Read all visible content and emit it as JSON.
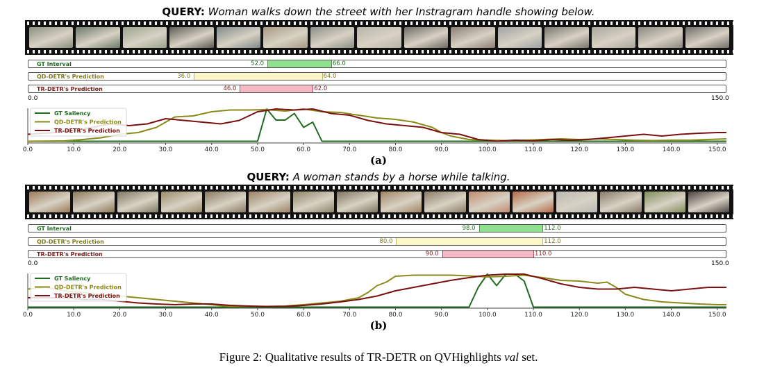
{
  "panels": [
    {
      "label": "(a)",
      "query_label": "QUERY:",
      "query_text": "Woman walks down the street with her Instragram handle showing below.",
      "film_colors": [
        "#8a8f7e",
        "#6b7a6a",
        "#9aa48e",
        "#5d5b55",
        "#7f8a8c",
        "#a69a82",
        "#8b8f86",
        "#b7b4aa",
        "#6e6a64",
        "#8c7e72",
        "#9ea3a2",
        "#7a766e",
        "#a9a69d",
        "#8d8880",
        "#6f6c68"
      ],
      "bars": [
        {
          "name": "GT Interval",
          "start": 52.0,
          "end": 66.0,
          "start_label": "52.0",
          "end_label": "66.0",
          "fill": "#8fe08f",
          "border": "#3a9a3a",
          "label_color": "#1f6e1f"
        },
        {
          "name": "QD-DETR's Prediction",
          "start": 36.0,
          "end": 64.0,
          "start_label": "36.0",
          "end_label": "64.0",
          "fill": "#fbf7c8",
          "border": "#bdb46a",
          "label_color": "#7f7a1c"
        },
        {
          "name": "TR-DETR's Prediction",
          "start": 46.0,
          "end": 62.0,
          "start_label": "46.0",
          "end_label": "62.0",
          "fill": "#f6b8c4",
          "border": "#a8485a",
          "label_color": "#7d1818"
        }
      ],
      "axis_min_label": "0.0",
      "axis_max_label": "150.0",
      "chart_data": {
        "type": "line",
        "xlim": [
          0,
          152
        ],
        "ylim": [
          0,
          1
        ],
        "xticks": [
          "0.0",
          "10.0",
          "20.0",
          "30.0",
          "40.0",
          "50.0",
          "60.0",
          "70.0",
          "80.0",
          "90.0",
          "100.0",
          "110.0",
          "120.0",
          "130.0",
          "140.0",
          "150.0"
        ],
        "legend": [
          "GT Saliency",
          "QD-DETR's Prediction",
          "TR-DETR's Prediction"
        ],
        "series": [
          {
            "name": "GT Saliency",
            "color": "#1e6b1e",
            "x": [
              0,
              50,
              52,
              54,
              56,
              58,
              60,
              62,
              64,
              66,
              152
            ],
            "y": [
              0.05,
              0.05,
              0.98,
              0.66,
              0.66,
              0.85,
              0.45,
              0.6,
              0.05,
              0.05,
              0.05
            ]
          },
          {
            "name": "QD-DETR's Prediction",
            "color": "#8a8a1a",
            "x": [
              0,
              8,
              12,
              16,
              20,
              24,
              28,
              30,
              32,
              36,
              40,
              44,
              48,
              52,
              56,
              60,
              64,
              68,
              72,
              76,
              80,
              84,
              88,
              90,
              92,
              96,
              100,
              104,
              108,
              112,
              116,
              120,
              124,
              128,
              132,
              136,
              140,
              144,
              148,
              152
            ],
            "y": [
              0.05,
              0.06,
              0.1,
              0.15,
              0.25,
              0.3,
              0.45,
              0.6,
              0.75,
              0.78,
              0.9,
              0.95,
              0.95,
              0.96,
              0.92,
              0.98,
              0.9,
              0.88,
              0.8,
              0.72,
              0.68,
              0.6,
              0.45,
              0.3,
              0.2,
              0.1,
              0.08,
              0.07,
              0.08,
              0.1,
              0.12,
              0.1,
              0.12,
              0.1,
              0.08,
              0.07,
              0.08,
              0.08,
              0.1,
              0.12
            ]
          },
          {
            "name": "TR-DETR's Prediction",
            "color": "#7a1010",
            "x": [
              0,
              6,
              10,
              14,
              18,
              22,
              26,
              30,
              34,
              38,
              42,
              46,
              50,
              54,
              58,
              62,
              66,
              70,
              74,
              78,
              82,
              86,
              90,
              94,
              98,
              102,
              106,
              110,
              114,
              118,
              122,
              126,
              130,
              134,
              138,
              142,
              146,
              150,
              152
            ],
            "y": [
              0.25,
              0.3,
              0.35,
              0.45,
              0.55,
              0.5,
              0.55,
              0.7,
              0.65,
              0.6,
              0.55,
              0.65,
              0.9,
              0.98,
              0.95,
              0.98,
              0.85,
              0.8,
              0.65,
              0.55,
              0.5,
              0.45,
              0.3,
              0.25,
              0.1,
              0.05,
              0.08,
              0.06,
              0.1,
              0.08,
              0.1,
              0.15,
              0.2,
              0.25,
              0.2,
              0.25,
              0.28,
              0.3,
              0.3
            ]
          }
        ]
      }
    },
    {
      "label": "(b)",
      "query_label": "QUERY:",
      "query_text": "A woman stands by a horse while talking.",
      "film_colors": [
        "#9a7a5a",
        "#8c7858",
        "#7d7a62",
        "#9a8a6a",
        "#8a7a62",
        "#9c8266",
        "#8f8468",
        "#7f7460",
        "#a08464",
        "#8c7c66",
        "#c08a70",
        "#b46a48",
        "#b8b8b4",
        "#8a7a6a",
        "#7f8e5c",
        "#4a4440"
      ],
      "bars": [
        {
          "name": "GT Interval",
          "start": 98.0,
          "end": 112.0,
          "start_label": "98.0",
          "end_label": "112.0",
          "fill": "#8fe08f",
          "border": "#3a9a3a",
          "label_color": "#1f6e1f"
        },
        {
          "name": "QD-DETR's Prediction",
          "start": 80.0,
          "end": 112.0,
          "start_label": "80.0",
          "end_label": "112.0",
          "fill": "#fbf7c8",
          "border": "#bdb46a",
          "label_color": "#7f7a1c"
        },
        {
          "name": "TR-DETR's Prediction",
          "start": 90.0,
          "end": 110.0,
          "start_label": "90.0",
          "end_label": "110.0",
          "fill": "#f6b8c4",
          "border": "#a8485a",
          "label_color": "#7d1818"
        }
      ],
      "axis_min_label": "0.0",
      "axis_max_label": "150.0",
      "chart_data": {
        "type": "line",
        "xlim": [
          0,
          152
        ],
        "ylim": [
          0,
          1
        ],
        "xticks": [
          "0.0",
          "10.0",
          "20.0",
          "30.0",
          "40.0",
          "50.0",
          "60.0",
          "70.0",
          "80.0",
          "90.0",
          "100.0",
          "110.0",
          "120.0",
          "130.0",
          "140.0",
          "150.0"
        ],
        "legend": [
          "GT Saliency",
          "QD-DETR's Prediction",
          "TR-DETR's Prediction"
        ],
        "series": [
          {
            "name": "GT Saliency",
            "color": "#1e6b1e",
            "x": [
              0,
              96,
              98,
              100,
              102,
              104,
              106,
              108,
              110,
              112,
              152
            ],
            "y": [
              0.03,
              0.03,
              0.6,
              0.98,
              0.65,
              0.98,
              0.98,
              0.78,
              0.03,
              0.03,
              0.03
            ]
          },
          {
            "name": "QD-DETR's Prediction",
            "color": "#8a8a1a",
            "x": [
              0,
              4,
              8,
              12,
              16,
              20,
              24,
              28,
              32,
              36,
              40,
              44,
              48,
              52,
              56,
              60,
              64,
              68,
              72,
              74,
              76,
              78,
              80,
              84,
              88,
              92,
              96,
              100,
              104,
              108,
              112,
              116,
              120,
              124,
              126,
              128,
              130,
              134,
              138,
              142,
              146,
              150,
              152
            ],
            "y": [
              0.55,
              0.6,
              0.5,
              0.45,
              0.4,
              0.35,
              0.3,
              0.25,
              0.2,
              0.15,
              0.1,
              0.05,
              0.05,
              0.05,
              0.06,
              0.1,
              0.15,
              0.2,
              0.3,
              0.45,
              0.65,
              0.75,
              0.92,
              0.95,
              0.95,
              0.95,
              0.93,
              0.9,
              0.92,
              0.95,
              0.88,
              0.8,
              0.78,
              0.72,
              0.75,
              0.6,
              0.4,
              0.25,
              0.18,
              0.15,
              0.12,
              0.1,
              0.1
            ]
          },
          {
            "name": "TR-DETR's Prediction",
            "color": "#7a1010",
            "x": [
              0,
              4,
              8,
              12,
              16,
              20,
              24,
              28,
              32,
              36,
              40,
              44,
              48,
              52,
              56,
              60,
              64,
              68,
              72,
              76,
              80,
              84,
              88,
              92,
              96,
              100,
              104,
              108,
              112,
              116,
              120,
              124,
              128,
              132,
              136,
              140,
              144,
              148,
              152
            ],
            "y": [
              0.3,
              0.3,
              0.3,
              0.25,
              0.25,
              0.2,
              0.15,
              0.12,
              0.1,
              0.12,
              0.12,
              0.08,
              0.06,
              0.05,
              0.05,
              0.08,
              0.12,
              0.18,
              0.25,
              0.35,
              0.5,
              0.6,
              0.7,
              0.8,
              0.88,
              0.95,
              0.98,
              0.98,
              0.85,
              0.7,
              0.6,
              0.55,
              0.55,
              0.6,
              0.55,
              0.5,
              0.55,
              0.6,
              0.6
            ]
          }
        ]
      }
    }
  ],
  "caption": {
    "prefix": "Figure 2: Qualitative results of TR-DETR on QVHighlights ",
    "italic": "val",
    "suffix": " set."
  }
}
